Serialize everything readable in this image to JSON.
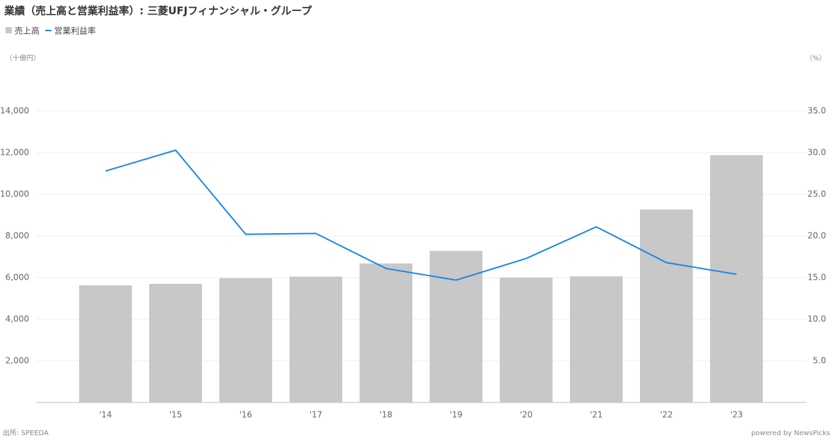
{
  "chart_data": {
    "type": "bar",
    "title": "業績（売上高と営業利益率）: 三菱UFJフィナンシャル・グループ",
    "y_label": "（十億円）",
    "y2_label": "（%）",
    "source": "出所: SPEEDA",
    "credit": "powered by NewsPicks",
    "categories": [
      "'14",
      "'15",
      "'16",
      "'17",
      "'18",
      "'19",
      "'20",
      "'21",
      "'22",
      "'23"
    ],
    "series": [
      {
        "name": "売上高",
        "type": "bar",
        "color": "#c8c8c8",
        "values": [
          5630,
          5700,
          5970,
          6050,
          6680,
          7280,
          6000,
          6060,
          9270,
          11880
        ]
      },
      {
        "name": "営業利益率",
        "type": "line",
        "axis": "y2",
        "color": "#1a85e6",
        "values": [
          27.8,
          30.3,
          20.2,
          20.3,
          16.1,
          14.7,
          17.3,
          21.1,
          16.8,
          15.4
        ]
      }
    ],
    "ylim": [
      0,
      14000
    ],
    "yticks": [
      {
        "value": 2000,
        "label": "2,000"
      },
      {
        "value": 4000,
        "label": "4,000"
      },
      {
        "value": 6000,
        "label": "6,000"
      },
      {
        "value": 8000,
        "label": "8,000"
      },
      {
        "value": 10000,
        "label": "10,000"
      },
      {
        "value": 12000,
        "label": "12,000"
      },
      {
        "value": 14000,
        "label": "14,000"
      }
    ],
    "y2lim": [
      0,
      35
    ],
    "y2ticks": [
      {
        "value": 5,
        "label": "5.0"
      },
      {
        "value": 10,
        "label": "10.0"
      },
      {
        "value": 15,
        "label": "15.0"
      },
      {
        "value": 20,
        "label": "20.0"
      },
      {
        "value": 25,
        "label": "25.0"
      },
      {
        "value": 30,
        "label": "30.0"
      },
      {
        "value": 35,
        "label": "35.0"
      }
    ],
    "grid": true
  }
}
